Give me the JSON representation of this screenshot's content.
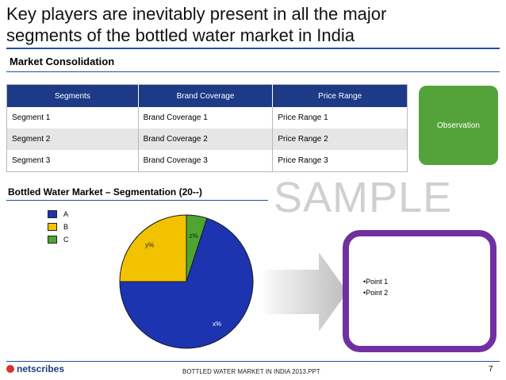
{
  "title": "Key players are inevitably present in all the major segments of the bottled water market in India",
  "subtitle": "Market Consolidation",
  "table": {
    "headers": [
      "Segments",
      "Brand Coverage",
      "Price Range"
    ],
    "rows": [
      [
        "Segment 1",
        "Brand Coverage 1",
        "Price Range 1"
      ],
      [
        "Segment 2",
        "Brand Coverage 2",
        "Price Range 2"
      ],
      [
        "Segment 3",
        "Brand Coverage 3",
        "Price Range 3"
      ]
    ]
  },
  "observation_label": "Observation",
  "watermark": "SAMPLE",
  "chart_title": "Bottled Water Market – Segmentation (20--)",
  "chart_data": {
    "type": "pie",
    "title": "Bottled Water Market – Segmentation (20--)",
    "legend_position": "top-left",
    "slices": [
      {
        "name": "A",
        "value": 70,
        "label": "x%",
        "color": "#1c34b0"
      },
      {
        "name": "B",
        "value": 25,
        "label": "y%",
        "color": "#f2c200"
      },
      {
        "name": "C",
        "value": 5,
        "label": "z%",
        "color": "#4ea52f"
      }
    ]
  },
  "points": [
    "Point 1",
    "Point 2"
  ],
  "footer": {
    "logo": "netscribes",
    "text": "BOTTLED WATER MARKET IN INDIA 2013.PPT",
    "page": "7"
  },
  "colors": {
    "header_blue": "#1c3a86",
    "observation_green": "#54a33a",
    "points_border_purple": "#7030a0",
    "rule_blue": "#1f4ea8"
  }
}
